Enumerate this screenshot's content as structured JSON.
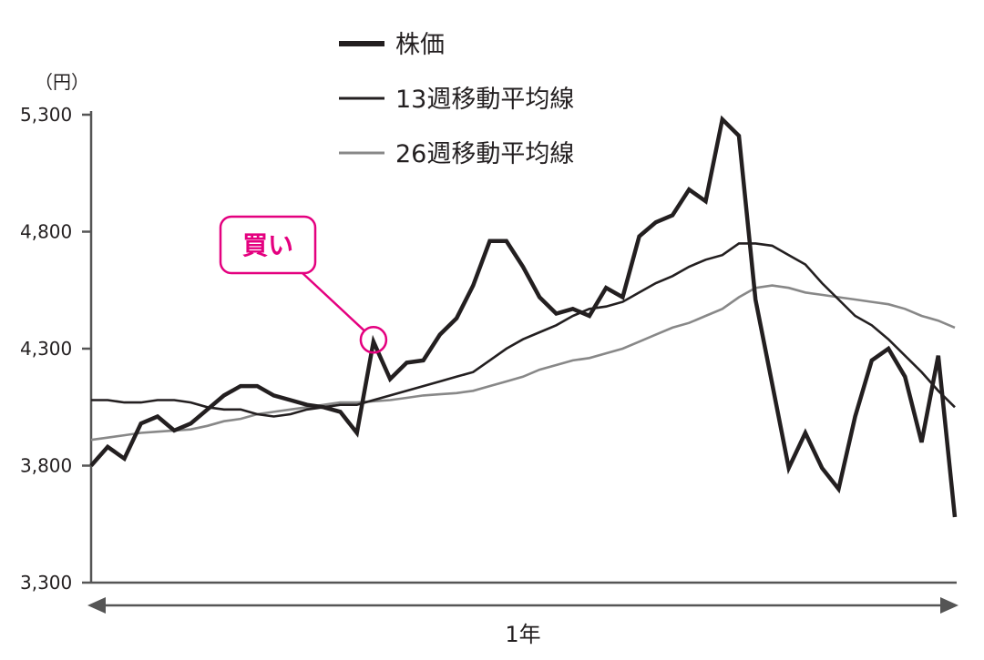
{
  "chart_data": {
    "type": "line",
    "unit_label": "（円）",
    "xlabel": "1年",
    "ylim": [
      3300,
      5300
    ],
    "yticks": [
      3300,
      3800,
      4300,
      4800,
      5300
    ],
    "ytick_labels": [
      "3,300",
      "3,800",
      "4,300",
      "4,800",
      "5,300"
    ],
    "grid": false,
    "legend_position": "top-center",
    "series": [
      {
        "name": "株価",
        "color": "#231f20",
        "style": "thick",
        "values": [
          3800,
          3880,
          3830,
          3980,
          4010,
          3950,
          3980,
          4040,
          4100,
          4140,
          4140,
          4100,
          4080,
          4060,
          4050,
          4030,
          3940,
          4330,
          4170,
          4240,
          4250,
          4360,
          4430,
          4570,
          4760,
          4760,
          4650,
          4520,
          4450,
          4470,
          4440,
          4560,
          4520,
          4780,
          4840,
          4870,
          4980,
          4930,
          5280,
          5210,
          4510,
          4150,
          3790,
          3940,
          3790,
          3700,
          4010,
          4250,
          4300,
          4180,
          3900,
          4270,
          3580
        ]
      },
      {
        "name": "13週移動平均線",
        "color": "#231f20",
        "style": "thin",
        "values": [
          4080,
          4080,
          4070,
          4070,
          4080,
          4080,
          4070,
          4050,
          4040,
          4040,
          4020,
          4010,
          4020,
          4040,
          4050,
          4060,
          4060,
          4080,
          4100,
          4120,
          4140,
          4160,
          4180,
          4200,
          4250,
          4300,
          4340,
          4370,
          4400,
          4440,
          4470,
          4480,
          4500,
          4540,
          4580,
          4610,
          4650,
          4680,
          4700,
          4750,
          4750,
          4740,
          4700,
          4660,
          4580,
          4510,
          4440,
          4400,
          4340,
          4270,
          4200,
          4120,
          4050
        ]
      },
      {
        "name": "26週移動平均線",
        "color": "#888888",
        "style": "thin",
        "values": [
          3910,
          3920,
          3930,
          3940,
          3945,
          3950,
          3955,
          3970,
          3990,
          4000,
          4020,
          4030,
          4040,
          4050,
          4060,
          4070,
          4070,
          4075,
          4080,
          4090,
          4100,
          4105,
          4110,
          4120,
          4140,
          4160,
          4180,
          4210,
          4230,
          4250,
          4260,
          4280,
          4300,
          4330,
          4360,
          4390,
          4410,
          4440,
          4470,
          4520,
          4560,
          4570,
          4560,
          4540,
          4530,
          4520,
          4510,
          4500,
          4490,
          4470,
          4440,
          4420,
          4390
        ]
      }
    ],
    "annotations": [
      {
        "label": "買い",
        "series": 0,
        "index": 17,
        "color": "#e4007f"
      }
    ]
  }
}
